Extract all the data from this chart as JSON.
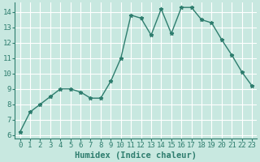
{
  "xlabel": "Humidex (Indice chaleur)",
  "ylabel": "",
  "x": [
    0,
    1,
    2,
    3,
    4,
    5,
    6,
    7,
    8,
    9,
    10,
    11,
    12,
    13,
    14,
    15,
    16,
    17,
    18,
    19,
    20,
    21,
    22,
    23
  ],
  "y": [
    6.2,
    7.5,
    8.0,
    8.5,
    9.0,
    9.0,
    8.8,
    8.4,
    8.4,
    9.5,
    11.0,
    13.8,
    13.6,
    12.5,
    14.2,
    12.6,
    14.3,
    14.3,
    13.5,
    13.3,
    12.2,
    11.2,
    10.1,
    9.2
  ],
  "line_color": "#2e7d6e",
  "marker": "*",
  "marker_size": 3.5,
  "ylim": [
    5.8,
    14.6
  ],
  "xlim": [
    -0.5,
    23.5
  ],
  "yticks": [
    6,
    7,
    8,
    9,
    10,
    11,
    12,
    13,
    14
  ],
  "xticks": [
    0,
    1,
    2,
    3,
    4,
    5,
    6,
    7,
    8,
    9,
    10,
    11,
    12,
    13,
    14,
    15,
    16,
    17,
    18,
    19,
    20,
    21,
    22,
    23
  ],
  "background_color": "#c8e8e0",
  "grid_color": "#ffffff",
  "tick_label_fontsize": 6.5,
  "xlabel_fontsize": 7.5,
  "line_width": 1.0
}
